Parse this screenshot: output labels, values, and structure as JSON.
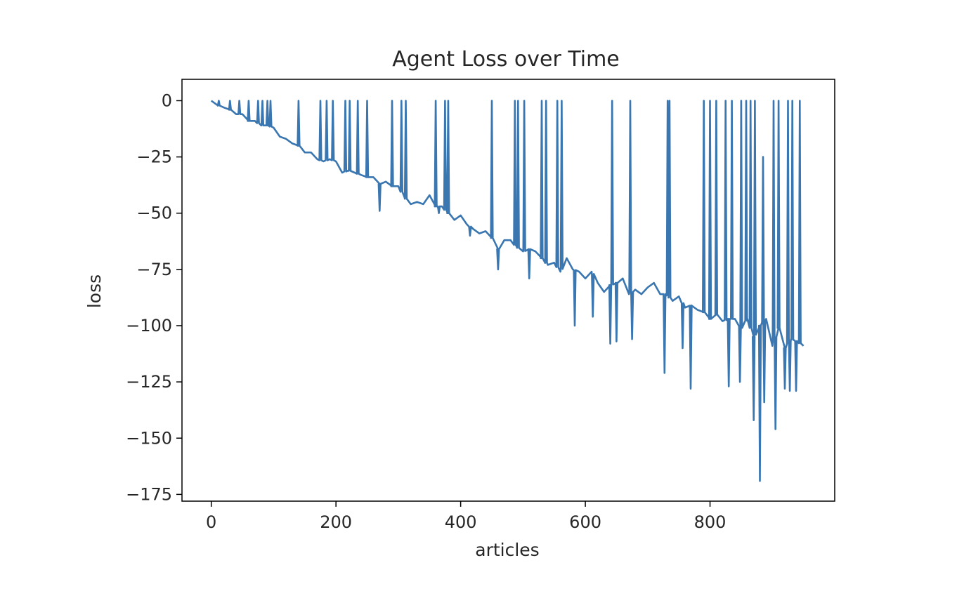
{
  "chart_data": {
    "type": "line",
    "title": "Agent Loss over Time",
    "xlabel": "articles",
    "ylabel": "loss",
    "xlim": [
      -47,
      1000
    ],
    "ylim": [
      -178,
      9.5
    ],
    "x_ticks": [
      0,
      200,
      400,
      600,
      800
    ],
    "y_ticks": [
      0,
      -25,
      -50,
      -75,
      -100,
      -125,
      -150,
      -175
    ],
    "x_tick_labels": [
      "0",
      "200",
      "400",
      "600",
      "800"
    ],
    "y_tick_labels": [
      "0",
      "−25",
      "−50",
      "−75",
      "−100",
      "−125",
      "−150",
      "−175"
    ],
    "grid": false,
    "legend": "none",
    "series": [
      {
        "color": "#3a76b0",
        "x": [
          0,
          10,
          20,
          30,
          40,
          50,
          60,
          70,
          80,
          90,
          100,
          110,
          120,
          130,
          140,
          150,
          160,
          170,
          180,
          190,
          200,
          210,
          220,
          230,
          240,
          250,
          260,
          270,
          280,
          290,
          300,
          310,
          320,
          330,
          340,
          350,
          360,
          370,
          380,
          390,
          400,
          410,
          420,
          430,
          440,
          450,
          460,
          470,
          480,
          490,
          500,
          510,
          520,
          530,
          540,
          550,
          560,
          570,
          580,
          590,
          600,
          610,
          620,
          630,
          640,
          650,
          660,
          670,
          680,
          690,
          700,
          710,
          720,
          730,
          740,
          750,
          760,
          770,
          780,
          790,
          800,
          810,
          820,
          830,
          840,
          850,
          860,
          870,
          880,
          890,
          900,
          910,
          920,
          930,
          940,
          950
        ],
        "y": [
          0,
          -2,
          -3,
          -4,
          -6,
          -6,
          -9,
          -9,
          -11,
          -11,
          -12,
          -16,
          -17,
          -19,
          -20,
          -23,
          -23,
          -26,
          -27,
          -26,
          -27,
          -32,
          -31,
          -32,
          -33,
          -34,
          -34,
          -37,
          -36,
          -38,
          -38,
          -43,
          -46,
          -45,
          -46,
          -42,
          -47,
          -47,
          -50,
          -53,
          -51,
          -55,
          -57,
          -59,
          -58,
          -61,
          -66,
          -62,
          -62,
          -65,
          -67,
          -66,
          -67,
          -70,
          -73,
          -72,
          -76,
          -70,
          -75,
          -76,
          -79,
          -76,
          -81,
          -85,
          -82,
          -81,
          -79,
          -86,
          -84,
          -86,
          -83,
          -81,
          -86,
          -86,
          -89,
          -87,
          -92,
          -91,
          -93,
          -94,
          -97,
          -95,
          -98,
          -97,
          -97,
          -101,
          -97,
          -105,
          -100,
          -97,
          -109,
          -101,
          -110,
          -106,
          -107,
          -109
        ],
        "spikes": [
          [
            12,
            0
          ],
          [
            30,
            0
          ],
          [
            45,
            0
          ],
          [
            60,
            0
          ],
          [
            75,
            0
          ],
          [
            82,
            0
          ],
          [
            90,
            0
          ],
          [
            95,
            0
          ],
          [
            140,
            0
          ],
          [
            175,
            0
          ],
          [
            185,
            0
          ],
          [
            195,
            0
          ],
          [
            215,
            0
          ],
          [
            222,
            0
          ],
          [
            235,
            0
          ],
          [
            250,
            0
          ],
          [
            290,
            0
          ],
          [
            305,
            0
          ],
          [
            312,
            0
          ],
          [
            360,
            0
          ],
          [
            375,
            0
          ],
          [
            380,
            0
          ],
          [
            450,
            0
          ],
          [
            487,
            0
          ],
          [
            492,
            0
          ],
          [
            502,
            0
          ],
          [
            530,
            0
          ],
          [
            537,
            0
          ],
          [
            555,
            0
          ],
          [
            562,
            0
          ],
          [
            643,
            0
          ],
          [
            672,
            0
          ],
          [
            732,
            0
          ],
          [
            735,
            0
          ],
          [
            790,
            0
          ],
          [
            800,
            0
          ],
          [
            810,
            0
          ],
          [
            825,
            0
          ],
          [
            835,
            0
          ],
          [
            850,
            0
          ],
          [
            858,
            0
          ],
          [
            865,
            0
          ],
          [
            872,
            0
          ],
          [
            885,
            -25
          ],
          [
            902,
            0
          ],
          [
            910,
            0
          ],
          [
            925,
            0
          ],
          [
            932,
            0
          ],
          [
            944,
            0
          ]
        ],
        "dips": [
          [
            270,
            -49
          ],
          [
            365,
            -50
          ],
          [
            415,
            -60
          ],
          [
            460,
            -75
          ],
          [
            510,
            -79
          ],
          [
            583,
            -100
          ],
          [
            612,
            -96
          ],
          [
            640,
            -108
          ],
          [
            650,
            -107
          ],
          [
            675,
            -106
          ],
          [
            727,
            -121
          ],
          [
            756,
            -110
          ],
          [
            769,
            -128
          ],
          [
            830,
            -127
          ],
          [
            848,
            -125
          ],
          [
            870,
            -142
          ],
          [
            880,
            -169
          ],
          [
            887,
            -134
          ],
          [
            905,
            -146
          ],
          [
            920,
            -128
          ],
          [
            928,
            -129
          ],
          [
            938,
            -129
          ]
        ]
      }
    ]
  }
}
